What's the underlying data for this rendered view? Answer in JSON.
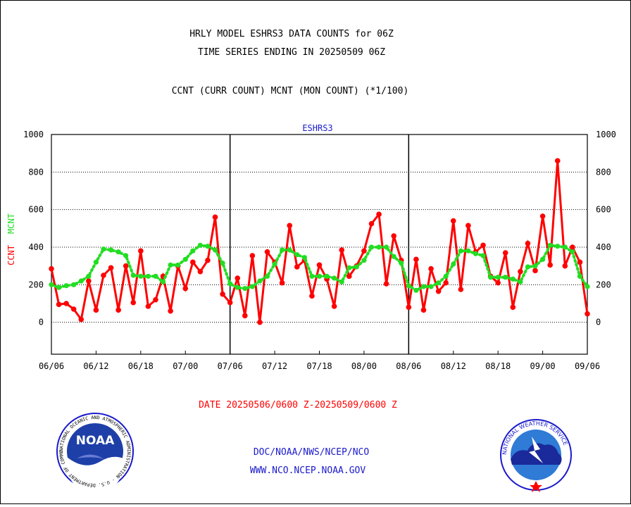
{
  "chart_data": {
    "type": "line",
    "title_lines": [
      "HRLY MODEL ESHRS3 DATA COUNTS for 06Z",
      "TIME SERIES ENDING IN 20250509 06Z"
    ],
    "subtitle": "CCNT (CURR COUNT) MCNT (MON COUNT) (*1/100)",
    "panel_label": "ESHRS3",
    "ylabel_left": [
      "CCNT",
      "MCNT"
    ],
    "xlabel": "DATE 20250506/0600 Z-20250509/0600 Z",
    "ylim": [
      -170,
      1000
    ],
    "yticks": [
      0,
      200,
      400,
      600,
      800,
      1000
    ],
    "x_range": [
      0,
      72
    ],
    "x_ticks": [
      {
        "x": 0,
        "label": "06/06"
      },
      {
        "x": 6,
        "label": "06/12"
      },
      {
        "x": 12,
        "label": "06/18"
      },
      {
        "x": 18,
        "label": "07/00"
      },
      {
        "x": 24,
        "label": "07/06"
      },
      {
        "x": 30,
        "label": "07/12"
      },
      {
        "x": 36,
        "label": "07/18"
      },
      {
        "x": 42,
        "label": "08/00"
      },
      {
        "x": 48,
        "label": "08/06"
      },
      {
        "x": 54,
        "label": "08/12"
      },
      {
        "x": 60,
        "label": "08/18"
      },
      {
        "x": 66,
        "label": "09/00"
      },
      {
        "x": 72,
        "label": "09/06"
      }
    ],
    "day_separators": [
      24,
      48
    ],
    "grid": true,
    "series": [
      {
        "name": "CCNT",
        "color": "#ff0000",
        "values": [
          285,
          95,
          100,
          70,
          15,
          220,
          65,
          250,
          290,
          65,
          300,
          105,
          380,
          85,
          120,
          245,
          60,
          300,
          180,
          320,
          270,
          330,
          560,
          150,
          105,
          235,
          35,
          355,
          0,
          375,
          320,
          210,
          515,
          295,
          330,
          140,
          305,
          230,
          85,
          385,
          245,
          300,
          380,
          525,
          575,
          205,
          460,
          330,
          80,
          335,
          65,
          285,
          165,
          210,
          540,
          175,
          515,
          375,
          410,
          245,
          210,
          370,
          80,
          270,
          420,
          275,
          565,
          305,
          860,
          300,
          400,
          320,
          45
        ]
      },
      {
        "name": "MCNT",
        "color": "#22dd22",
        "values": [
          200,
          185,
          195,
          200,
          220,
          245,
          320,
          390,
          385,
          375,
          355,
          250,
          245,
          245,
          245,
          215,
          305,
          305,
          335,
          380,
          410,
          405,
          385,
          315,
          205,
          185,
          180,
          190,
          220,
          245,
          310,
          385,
          385,
          360,
          345,
          245,
          245,
          245,
          235,
          215,
          290,
          295,
          330,
          400,
          400,
          400,
          350,
          315,
          195,
          170,
          190,
          190,
          210,
          245,
          310,
          380,
          380,
          365,
          355,
          240,
          240,
          240,
          230,
          215,
          295,
          300,
          335,
          410,
          405,
          400,
          375,
          245,
          190
        ]
      }
    ]
  },
  "footer": {
    "org": "DOC/NOAA/NWS/NCEP/NCO",
    "url": "WWW.NCO.NCEP.NOAA.GOV"
  },
  "logos": {
    "noaa_center": "NOAA",
    "noaa_ring": "NATIONAL OCEANIC AND ATMOSPHERIC ADMINISTRATION · U.S. DEPARTMENT OF COMMERCE",
    "nws_ring": "NATIONAL WEATHER SERVICE"
  }
}
